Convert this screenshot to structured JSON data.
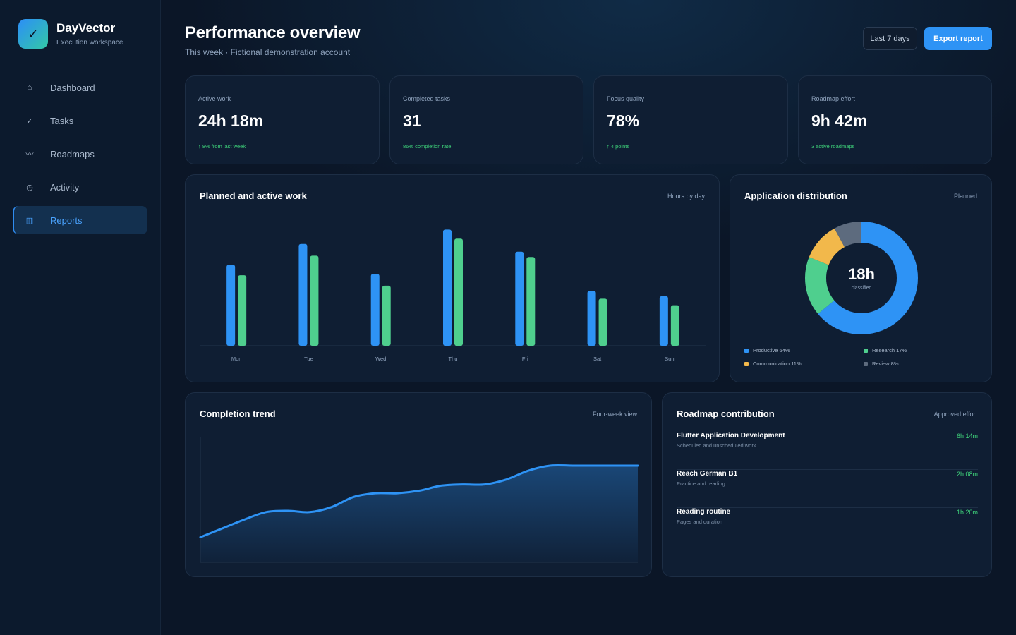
{
  "brand": {
    "name": "DayVector",
    "subtitle": "Execution workspace",
    "logo_icon": "check-icon"
  },
  "sidebar": {
    "items": [
      {
        "label": "Dashboard",
        "icon": "home-icon",
        "active": false
      },
      {
        "label": "Tasks",
        "icon": "check-icon",
        "active": false
      },
      {
        "label": "Roadmaps",
        "icon": "wave-icon",
        "active": false
      },
      {
        "label": "Activity",
        "icon": "clock-icon",
        "active": false
      },
      {
        "label": "Reports",
        "icon": "table-icon",
        "active": true
      }
    ]
  },
  "header": {
    "title": "Performance overview",
    "subtitle": "This week · Fictional demonstration account",
    "range_button": "Last 7 days",
    "export_button": "Export report"
  },
  "stats": [
    {
      "label": "Active work",
      "value": "24h 18m",
      "note": "↑ 8% from last week"
    },
    {
      "label": "Completed tasks",
      "value": "31",
      "note": "86% completion rate"
    },
    {
      "label": "Focus quality",
      "value": "78%",
      "note": "↑ 4 points"
    },
    {
      "label": "Roadmap effort",
      "value": "9h 42m",
      "note": "3 active roadmaps"
    }
  ],
  "planned_chart": {
    "title": "Planned and active work",
    "meta": "Hours by day"
  },
  "distribution": {
    "title": "Application distribution",
    "meta": "Planned",
    "center_value": "18h",
    "center_label": "classified"
  },
  "trend": {
    "title": "Completion trend",
    "meta": "Four-week view"
  },
  "roadmap": {
    "title": "Roadmap contribution",
    "meta": "Approved effort",
    "items": [
      {
        "name": "Flutter Application Development",
        "desc": "Scheduled and unscheduled work",
        "time": "6h 14m"
      },
      {
        "name": "Reach German B1",
        "desc": "Practice and reading",
        "time": "2h 08m"
      },
      {
        "name": "Reading routine",
        "desc": "Pages and duration",
        "time": "1h 20m"
      }
    ]
  },
  "colors": {
    "accent_blue": "#2e93f5",
    "accent_green": "#4fcf8e",
    "accent_yellow": "#f2b84b",
    "accent_gray": "#5d6b7e",
    "positive_text": "#3fd47b",
    "background": "#0b1627",
    "card": "#0f1e33"
  },
  "chart_data": [
    {
      "type": "bar",
      "categories": [
        "Mon",
        "Tue",
        "Wed",
        "Thu",
        "Fri",
        "Sat",
        "Sun"
      ],
      "series": [
        {
          "values": [
            3.1,
            3.9,
            2.75,
            4.45,
            3.6,
            2.1,
            1.9
          ],
          "color": "#2e93f5"
        },
        {
          "values": [
            2.7,
            3.45,
            2.3,
            4.1,
            3.4,
            1.8,
            1.55
          ],
          "color": "#4fcf8e"
        }
      ],
      "ylim": [
        0,
        5
      ],
      "grid": false
    },
    {
      "type": "pie",
      "categories": [
        "Productive",
        "Research",
        "Communication",
        "Review"
      ],
      "values": [
        64,
        17,
        11,
        8
      ],
      "labels": [
        "Productive 64%",
        "Research 17%",
        "Communication 11%",
        "Review 8%"
      ],
      "colors": [
        "#2e93f5",
        "#4fcf8e",
        "#f2b84b",
        "#5d6b7e"
      ]
    },
    {
      "type": "area",
      "x": [
        0,
        1,
        2,
        3,
        4,
        5,
        6,
        7,
        8,
        9,
        10,
        11,
        12,
        13,
        14,
        15,
        16,
        17,
        18,
        19,
        20
      ],
      "values": [
        20,
        27,
        34,
        40,
        41,
        40,
        44,
        52,
        55,
        55,
        57,
        61,
        62,
        62,
        66,
        73,
        77,
        77,
        77,
        77,
        77
      ],
      "ylim": [
        0,
        100
      ],
      "color": "#2e93f5"
    }
  ]
}
